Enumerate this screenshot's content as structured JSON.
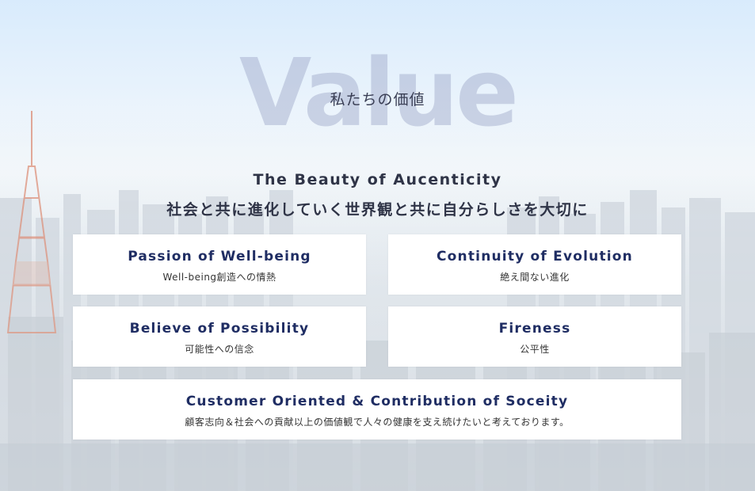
{
  "hero": {
    "watermark": "Value",
    "subtitle": "私たちの価値"
  },
  "tagline": {
    "en": "The Beauty of Aucenticity",
    "jp": "社会と共に進化していく世界観と共に自分らしさを大切に"
  },
  "values": [
    {
      "title": "Passion of Well-being",
      "desc": "Well-being創造への情熱"
    },
    {
      "title": "Continuity of Evolution",
      "desc": "絶え間ない進化"
    },
    {
      "title": "Believe of Possibility",
      "desc": "可能性への信念"
    },
    {
      "title": "Fireness",
      "desc": "公平性"
    },
    {
      "title": "Customer Oriented & Contribution of Soceity",
      "desc": "顧客志向＆社会への貢献以上の価値観で人々の健康を支え続けたいと考えております。"
    }
  ],
  "colors": {
    "title": "#1f2d63",
    "watermark": "#969fc3",
    "tower": "#d2694a"
  },
  "background": {
    "description_icon": "city-skyline-photo"
  }
}
